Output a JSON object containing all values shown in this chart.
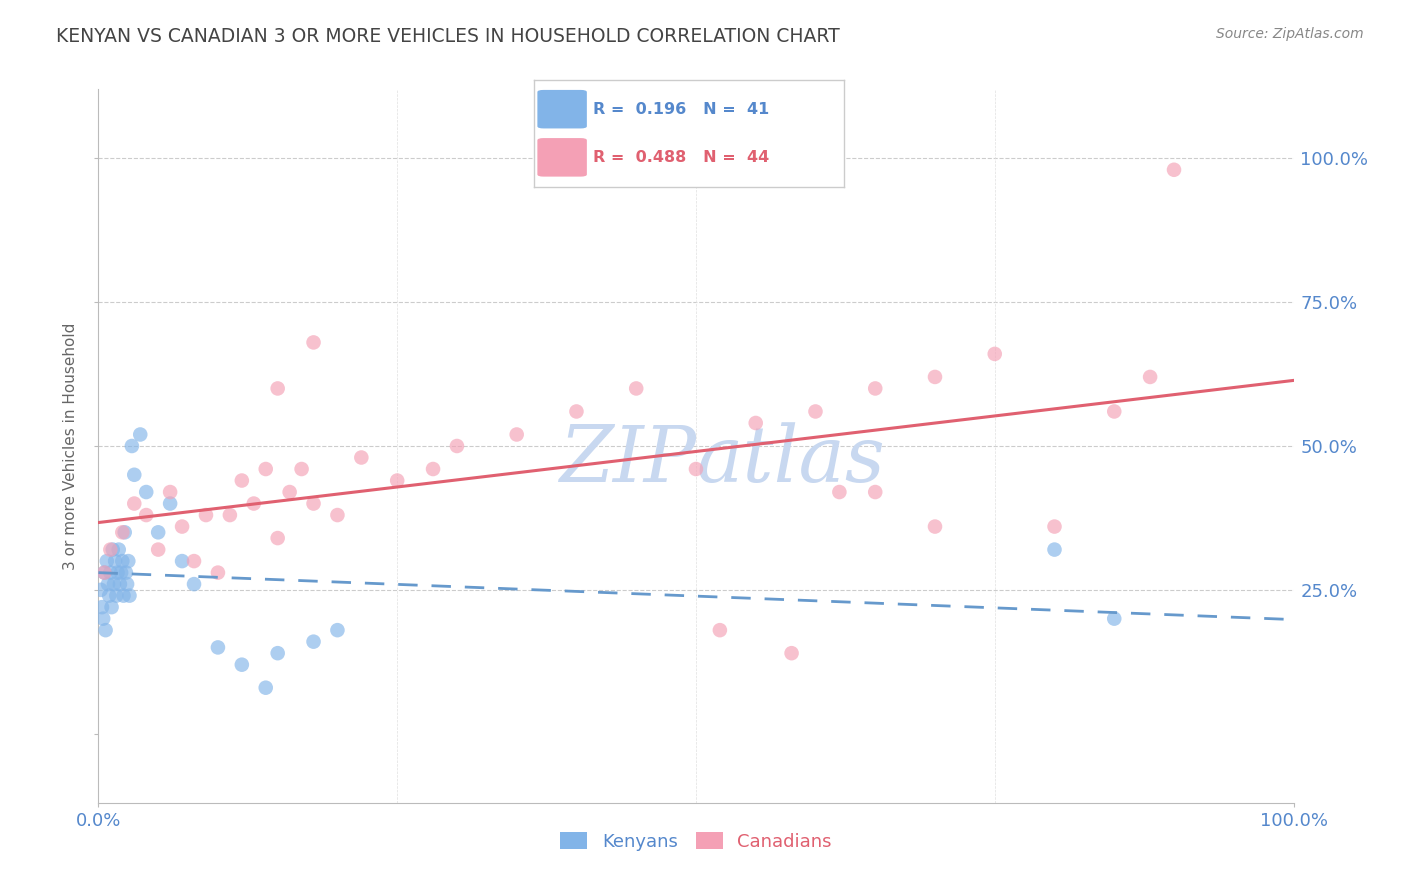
{
  "title": "KENYAN VS CANADIAN 3 OR MORE VEHICLES IN HOUSEHOLD CORRELATION CHART",
  "source": "Source: ZipAtlas.com",
  "ylabel_label": "3 or more Vehicles in Household",
  "r_kenyan": 0.196,
  "n_kenyan": 41,
  "r_canadian": 0.488,
  "n_canadian": 44,
  "color_kenyan": "#82B4E8",
  "color_canadian": "#F4A0B5",
  "color_line_kenyan": "#6699CC",
  "color_line_canadian": "#E06070",
  "watermark_color": "#C8D8F0",
  "title_color": "#444444",
  "axis_label_color": "#5588CC",
  "grid_color": "#CCCCCC",
  "background_color": "#FFFFFF",
  "xlim": [
    0,
    100
  ],
  "ylim": [
    -12,
    112
  ],
  "kenyan_x": [
    0.2,
    0.3,
    0.4,
    0.5,
    0.6,
    0.7,
    0.8,
    0.9,
    1.0,
    1.1,
    1.2,
    1.3,
    1.4,
    1.5,
    1.6,
    1.7,
    1.8,
    1.9,
    2.0,
    2.1,
    2.2,
    2.3,
    2.4,
    2.5,
    2.6,
    2.8,
    3.0,
    3.5,
    4.0,
    5.0,
    6.0,
    7.0,
    8.0,
    10.0,
    12.0,
    14.0,
    15.0,
    18.0,
    20.0,
    80.0,
    85.0
  ],
  "kenyan_y": [
    25.0,
    22.0,
    20.0,
    28.0,
    18.0,
    30.0,
    26.0,
    24.0,
    28.0,
    22.0,
    32.0,
    26.0,
    30.0,
    24.0,
    28.0,
    32.0,
    26.0,
    28.0,
    30.0,
    24.0,
    35.0,
    28.0,
    26.0,
    30.0,
    24.0,
    50.0,
    45.0,
    52.0,
    42.0,
    35.0,
    40.0,
    30.0,
    26.0,
    15.0,
    12.0,
    8.0,
    14.0,
    16.0,
    18.0,
    32.0,
    20.0
  ],
  "canadian_x": [
    0.5,
    1.0,
    2.0,
    3.0,
    4.0,
    5.0,
    6.0,
    7.0,
    8.0,
    9.0,
    10.0,
    11.0,
    12.0,
    13.0,
    14.0,
    15.0,
    16.0,
    17.0,
    18.0,
    20.0,
    22.0,
    25.0,
    28.0,
    30.0,
    35.0,
    40.0,
    45.0,
    50.0,
    55.0,
    60.0,
    62.0,
    65.0,
    70.0,
    75.0,
    80.0,
    85.0,
    88.0,
    90.0,
    52.0,
    58.0,
    65.0,
    70.0,
    18.0,
    15.0
  ],
  "canadian_y": [
    28.0,
    32.0,
    35.0,
    40.0,
    38.0,
    32.0,
    42.0,
    36.0,
    30.0,
    38.0,
    28.0,
    38.0,
    44.0,
    40.0,
    46.0,
    34.0,
    42.0,
    46.0,
    40.0,
    38.0,
    48.0,
    44.0,
    46.0,
    50.0,
    52.0,
    56.0,
    60.0,
    46.0,
    54.0,
    56.0,
    42.0,
    60.0,
    62.0,
    66.0,
    36.0,
    56.0,
    62.0,
    98.0,
    18.0,
    14.0,
    42.0,
    36.0,
    68.0,
    60.0
  ]
}
